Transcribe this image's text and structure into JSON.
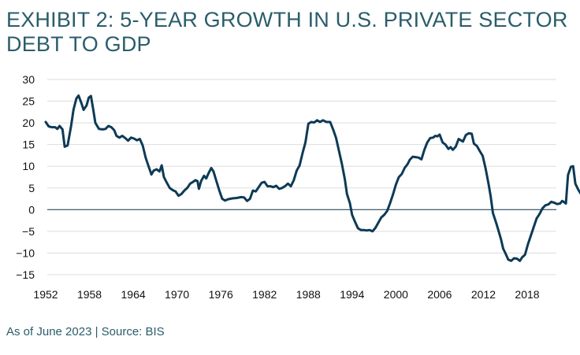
{
  "title": "EXHIBIT 2: 5-YEAR GROWTH IN U.S. PRIVATE SECTOR DEBT TO GDP",
  "footer": "As of June 2023 | Source: BIS",
  "colors": {
    "title": "#2a5d6b",
    "line": "#0d3a56",
    "grid": "#dddddd",
    "zero_line": "#2b4a5e",
    "tick_text": "#111111"
  },
  "chart_data": {
    "type": "line",
    "title": "EXHIBIT 2: 5-YEAR GROWTH IN U.S. PRIVATE SECTOR DEBT TO GDP",
    "xlabel": "",
    "ylabel": "",
    "xlim": [
      1952,
      2023.5
    ],
    "ylim": [
      -15,
      30
    ],
    "x_ticks": [
      1952,
      1958,
      1964,
      1970,
      1976,
      1982,
      1988,
      1994,
      2000,
      2006,
      2012,
      2018
    ],
    "y_ticks": [
      30,
      25,
      20,
      15,
      10,
      5,
      0,
      -5,
      -10,
      -15
    ],
    "grid": "horizontal",
    "series": [
      {
        "points": [
          [
            1952.0,
            20.2
          ],
          [
            1952.4,
            19.2
          ],
          [
            1952.8,
            19.0
          ],
          [
            1953.3,
            19.0
          ],
          [
            1953.6,
            18.6
          ],
          [
            1953.9,
            19.3
          ],
          [
            1954.3,
            18.5
          ],
          [
            1954.6,
            14.5
          ],
          [
            1955.0,
            14.8
          ],
          [
            1955.5,
            19.5
          ],
          [
            1955.8,
            23.0
          ],
          [
            1956.2,
            25.6
          ],
          [
            1956.5,
            26.3
          ],
          [
            1956.9,
            24.5
          ],
          [
            1957.2,
            23.0
          ],
          [
            1957.6,
            24.0
          ],
          [
            1957.9,
            25.8
          ],
          [
            1958.2,
            26.2
          ],
          [
            1958.5,
            23.2
          ],
          [
            1958.8,
            20.0
          ],
          [
            1959.3,
            18.6
          ],
          [
            1959.8,
            18.5
          ],
          [
            1960.2,
            18.6
          ],
          [
            1960.6,
            19.3
          ],
          [
            1961.0,
            19.0
          ],
          [
            1961.4,
            18.3
          ],
          [
            1961.7,
            17.0
          ],
          [
            1962.1,
            16.6
          ],
          [
            1962.5,
            17.0
          ],
          [
            1962.9,
            16.5
          ],
          [
            1963.3,
            15.9
          ],
          [
            1963.7,
            16.6
          ],
          [
            1964.1,
            16.4
          ],
          [
            1964.5,
            16.0
          ],
          [
            1964.9,
            16.3
          ],
          [
            1965.3,
            14.8
          ],
          [
            1965.7,
            12.0
          ],
          [
            1966.1,
            10.0
          ],
          [
            1966.5,
            8.1
          ],
          [
            1966.8,
            9.0
          ],
          [
            1967.2,
            9.3
          ],
          [
            1967.6,
            8.8
          ],
          [
            1967.9,
            10.2
          ],
          [
            1968.2,
            7.5
          ],
          [
            1968.6,
            6.2
          ],
          [
            1969.0,
            5.0
          ],
          [
            1969.4,
            4.5
          ],
          [
            1969.8,
            4.2
          ],
          [
            1970.2,
            3.2
          ],
          [
            1970.6,
            3.6
          ],
          [
            1971.0,
            4.4
          ],
          [
            1971.4,
            5.0
          ],
          [
            1971.8,
            6.0
          ],
          [
            1972.2,
            6.4
          ],
          [
            1972.5,
            6.8
          ],
          [
            1972.8,
            6.6
          ],
          [
            1973.0,
            4.8
          ],
          [
            1973.3,
            6.6
          ],
          [
            1973.7,
            7.8
          ],
          [
            1974.0,
            7.2
          ],
          [
            1974.3,
            8.3
          ],
          [
            1974.7,
            9.6
          ],
          [
            1975.0,
            8.8
          ],
          [
            1975.4,
            6.6
          ],
          [
            1975.8,
            4.4
          ],
          [
            1976.2,
            2.5
          ],
          [
            1976.6,
            2.1
          ],
          [
            1977.0,
            2.4
          ],
          [
            1977.6,
            2.6
          ],
          [
            1978.2,
            2.7
          ],
          [
            1978.8,
            2.9
          ],
          [
            1979.2,
            2.8
          ],
          [
            1979.6,
            2.0
          ],
          [
            1980.0,
            2.5
          ],
          [
            1980.4,
            4.4
          ],
          [
            1980.8,
            4.2
          ],
          [
            1981.2,
            5.2
          ],
          [
            1981.6,
            6.2
          ],
          [
            1982.0,
            6.4
          ],
          [
            1982.4,
            5.4
          ],
          [
            1982.8,
            5.4
          ],
          [
            1983.2,
            5.2
          ],
          [
            1983.6,
            5.5
          ],
          [
            1984.0,
            4.8
          ],
          [
            1984.4,
            5.0
          ],
          [
            1984.8,
            5.4
          ],
          [
            1985.2,
            6.0
          ],
          [
            1985.6,
            5.4
          ],
          [
            1986.0,
            6.8
          ],
          [
            1986.4,
            9.0
          ],
          [
            1986.8,
            10.2
          ],
          [
            1987.2,
            13.0
          ],
          [
            1987.6,
            15.5
          ],
          [
            1988.0,
            19.8
          ],
          [
            1988.4,
            20.2
          ],
          [
            1988.8,
            20.1
          ],
          [
            1989.2,
            20.6
          ],
          [
            1989.6,
            20.2
          ],
          [
            1990.0,
            20.6
          ],
          [
            1990.5,
            20.2
          ],
          [
            1991.0,
            20.2
          ],
          [
            1991.4,
            18.5
          ],
          [
            1991.8,
            16.5
          ],
          [
            1992.2,
            13.5
          ],
          [
            1992.6,
            10.5
          ],
          [
            1993.0,
            7.0
          ],
          [
            1993.3,
            3.6
          ],
          [
            1993.7,
            1.5
          ],
          [
            1994.0,
            -1.2
          ],
          [
            1994.4,
            -2.8
          ],
          [
            1994.8,
            -4.3
          ],
          [
            1995.2,
            -4.7
          ],
          [
            1995.6,
            -4.7
          ],
          [
            1996.0,
            -4.8
          ],
          [
            1996.4,
            -4.7
          ],
          [
            1996.8,
            -5.0
          ],
          [
            1997.2,
            -4.2
          ],
          [
            1997.6,
            -3.0
          ],
          [
            1998.0,
            -1.8
          ],
          [
            1998.4,
            -1.2
          ],
          [
            1998.8,
            -0.3
          ],
          [
            1999.2,
            1.5
          ],
          [
            1999.6,
            3.5
          ],
          [
            2000.0,
            5.8
          ],
          [
            2000.4,
            7.5
          ],
          [
            2000.8,
            8.2
          ],
          [
            2001.2,
            9.6
          ],
          [
            2001.6,
            10.5
          ],
          [
            2001.9,
            11.5
          ],
          [
            2002.3,
            12.2
          ],
          [
            2002.7,
            12.1
          ],
          [
            2003.1,
            12.0
          ],
          [
            2003.5,
            11.6
          ],
          [
            2003.9,
            13.8
          ],
          [
            2004.3,
            15.5
          ],
          [
            2004.7,
            16.5
          ],
          [
            2005.1,
            16.6
          ],
          [
            2005.4,
            17.0
          ],
          [
            2005.7,
            16.9
          ],
          [
            2006.0,
            17.3
          ],
          [
            2006.4,
            15.5
          ],
          [
            2006.8,
            15.0
          ],
          [
            2007.2,
            14.0
          ],
          [
            2007.5,
            14.4
          ],
          [
            2007.8,
            13.8
          ],
          [
            2008.2,
            14.5
          ],
          [
            2008.6,
            16.3
          ],
          [
            2008.9,
            16.0
          ],
          [
            2009.2,
            15.7
          ],
          [
            2009.6,
            17.2
          ],
          [
            2010.0,
            17.6
          ],
          [
            2010.4,
            17.5
          ],
          [
            2010.7,
            15.2
          ],
          [
            2011.1,
            14.7
          ],
          [
            2011.5,
            13.5
          ],
          [
            2011.9,
            12.4
          ],
          [
            2012.3,
            9.5
          ],
          [
            2012.7,
            6.0
          ],
          [
            2013.0,
            3.0
          ],
          [
            2013.3,
            -0.8
          ],
          [
            2013.7,
            -2.8
          ],
          [
            2014.0,
            -4.5
          ],
          [
            2014.4,
            -6.8
          ],
          [
            2014.7,
            -9.0
          ],
          [
            2015.0,
            -10.0
          ],
          [
            2015.4,
            -11.5
          ],
          [
            2015.8,
            -11.8
          ],
          [
            2016.2,
            -11.2
          ],
          [
            2016.6,
            -11.3
          ],
          [
            2017.0,
            -11.8
          ],
          [
            2017.3,
            -11.0
          ],
          [
            2017.7,
            -10.4
          ],
          [
            2018.1,
            -8.0
          ],
          [
            2018.5,
            -6.0
          ],
          [
            2018.9,
            -4.0
          ],
          [
            2019.3,
            -2.0
          ],
          [
            2019.7,
            -1.0
          ],
          [
            2020.1,
            0.3
          ],
          [
            2020.5,
            1.0
          ],
          [
            2020.9,
            1.2
          ],
          [
            2021.3,
            1.8
          ],
          [
            2021.7,
            1.6
          ],
          [
            2022.1,
            1.3
          ],
          [
            2022.5,
            1.4
          ],
          [
            2022.8,
            2.0
          ],
          [
            2023.0,
            1.8
          ],
          [
            2023.3,
            1.4
          ],
          [
            2023.6,
            8.0
          ],
          [
            2024.0,
            9.9
          ],
          [
            2024.3,
            10.0
          ],
          [
            2024.6,
            6.0
          ],
          [
            2025.0,
            4.6
          ],
          [
            2025.4,
            3.5
          ],
          [
            2025.8,
            2.2
          ],
          [
            2026.2,
            1.5
          ]
        ]
      }
    ]
  }
}
